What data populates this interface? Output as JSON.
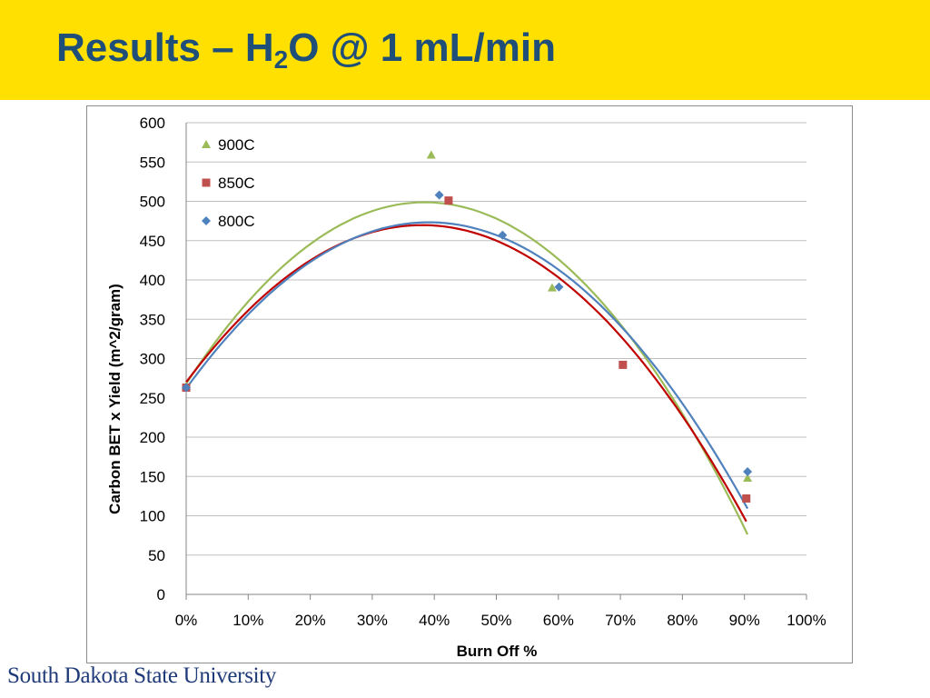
{
  "slide": {
    "title_prefix": "Results – H",
    "title_sub": "2",
    "title_suffix": "O @ 1 mL/min",
    "footer": "South Dakota State University"
  },
  "colors": {
    "title_bar": "#FFE000",
    "title_text": "#1F4E79",
    "series_900C": "#9BBB59",
    "series_850C": "#C0504D",
    "series_800C": "#4F81BD",
    "trend_850C": "#C00000",
    "grid": "#BFBFBF"
  },
  "chart_data": {
    "type": "scatter",
    "xlabel": "Burn Off %",
    "ylabel": "Carbon BET x Yield (m^2/gram)",
    "xlim": [
      0,
      1
    ],
    "ylim": [
      0,
      600
    ],
    "x_ticks": [
      "0%",
      "10%",
      "20%",
      "30%",
      "40%",
      "50%",
      "60%",
      "70%",
      "80%",
      "90%",
      "100%"
    ],
    "y_ticks": [
      "0",
      "50",
      "100",
      "150",
      "200",
      "250",
      "300",
      "350",
      "400",
      "450",
      "500",
      "550",
      "600"
    ],
    "grid": "horizontal",
    "legend_position": "top-left",
    "trendline": "polynomial",
    "series": [
      {
        "name": "900C",
        "marker": "triangle",
        "color": "#9BBB59",
        "points": [
          [
            0.0,
            265
          ],
          [
            0.395,
            559
          ],
          [
            0.59,
            390
          ],
          [
            0.905,
            148
          ]
        ],
        "trend": {
          "c0": 268,
          "c1": 1200,
          "c2": -1560,
          "x_end": 0.905
        }
      },
      {
        "name": "850C",
        "marker": "square",
        "color": "#C0504D",
        "trend_color": "#C00000",
        "points": [
          [
            0.0,
            263
          ],
          [
            0.423,
            501
          ],
          [
            0.704,
            292
          ],
          [
            0.903,
            122
          ]
        ],
        "trend": {
          "c0": 270,
          "c1": 1050,
          "c2": -1380,
          "x_end": 0.903
        }
      },
      {
        "name": "800C",
        "marker": "diamond",
        "color": "#4F81BD",
        "points": [
          [
            0.0,
            263
          ],
          [
            0.408,
            508
          ],
          [
            0.51,
            457
          ],
          [
            0.601,
            391
          ],
          [
            0.905,
            156
          ]
        ],
        "trend": {
          "c0": 262,
          "c1": 1080,
          "c2": -1380,
          "x_end": 0.905
        }
      }
    ]
  }
}
